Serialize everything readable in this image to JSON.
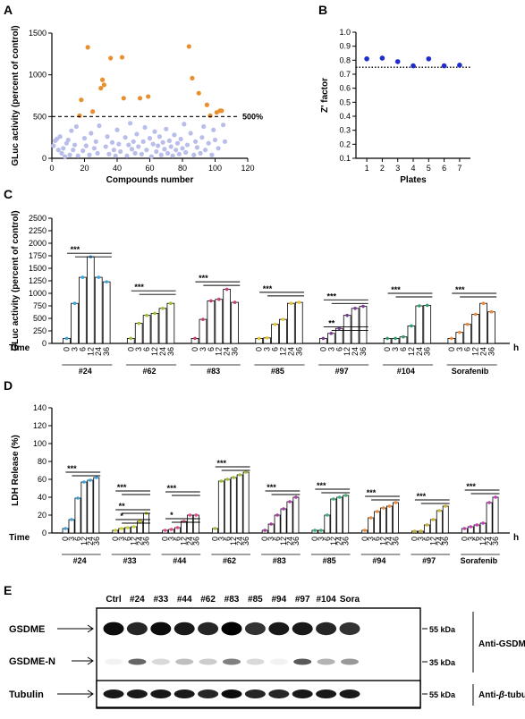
{
  "panels": {
    "A": "A",
    "B": "B",
    "C": "C",
    "D": "D",
    "E": "E"
  },
  "chart_data": [
    {
      "id": "A",
      "type": "scatter",
      "xlabel": "Compounds number",
      "ylabel": "GLuc activity (percent of control)",
      "xlim": [
        0,
        120
      ],
      "ylim": [
        0,
        1500
      ],
      "xticks": [
        0,
        20,
        40,
        60,
        80,
        100,
        120
      ],
      "yticks": [
        0,
        500,
        1000,
        1500
      ],
      "threshold": {
        "value": 500,
        "label": "500%"
      },
      "colors": {
        "hit": "#E8902E",
        "nonhit": "#B9BDEA"
      },
      "hits": [
        [
          17,
          510
        ],
        [
          18,
          700
        ],
        [
          22,
          1330
        ],
        [
          25,
          560
        ],
        [
          30,
          840
        ],
        [
          31,
          940
        ],
        [
          32,
          880
        ],
        [
          36,
          1200
        ],
        [
          43,
          1210
        ],
        [
          44,
          720
        ],
        [
          54,
          720
        ],
        [
          59,
          740
        ],
        [
          84,
          1340
        ],
        [
          86,
          960
        ],
        [
          90,
          780
        ],
        [
          95,
          640
        ],
        [
          97,
          510
        ],
        [
          101,
          550
        ],
        [
          103,
          570
        ],
        [
          104,
          570
        ]
      ],
      "nonhits": [
        [
          1,
          150
        ],
        [
          2,
          210
        ],
        [
          3,
          230
        ],
        [
          4,
          100
        ],
        [
          5,
          260
        ],
        [
          6,
          60
        ],
        [
          7,
          120
        ],
        [
          8,
          20
        ],
        [
          9,
          180
        ],
        [
          10,
          220
        ],
        [
          11,
          40
        ],
        [
          12,
          330
        ],
        [
          13,
          100
        ],
        [
          14,
          160
        ],
        [
          15,
          380
        ],
        [
          16,
          30
        ],
        [
          19,
          90
        ],
        [
          20,
          240
        ],
        [
          21,
          150
        ],
        [
          23,
          40
        ],
        [
          24,
          300
        ],
        [
          26,
          120
        ],
        [
          27,
          200
        ],
        [
          28,
          60
        ],
        [
          29,
          390
        ],
        [
          33,
          140
        ],
        [
          34,
          260
        ],
        [
          35,
          50
        ],
        [
          37,
          190
        ],
        [
          38,
          100
        ],
        [
          39,
          30
        ],
        [
          40,
          340
        ],
        [
          41,
          170
        ],
        [
          42,
          80
        ],
        [
          45,
          250
        ],
        [
          46,
          30
        ],
        [
          47,
          160
        ],
        [
          48,
          420
        ],
        [
          49,
          110
        ],
        [
          50,
          200
        ],
        [
          51,
          60
        ],
        [
          52,
          290
        ],
        [
          53,
          140
        ],
        [
          55,
          50
        ],
        [
          56,
          200
        ],
        [
          57,
          370
        ],
        [
          58,
          100
        ],
        [
          60,
          240
        ],
        [
          61,
          20
        ],
        [
          62,
          170
        ],
        [
          63,
          320
        ],
        [
          64,
          80
        ],
        [
          65,
          150
        ],
        [
          66,
          260
        ],
        [
          67,
          40
        ],
        [
          68,
          190
        ],
        [
          69,
          110
        ],
        [
          70,
          350
        ],
        [
          71,
          60
        ],
        [
          72,
          210
        ],
        [
          73,
          140
        ],
        [
          74,
          30
        ],
        [
          75,
          280
        ],
        [
          76,
          100
        ],
        [
          77,
          180
        ],
        [
          78,
          50
        ],
        [
          79,
          230
        ],
        [
          80,
          120
        ],
        [
          81,
          410
        ],
        [
          82,
          70
        ],
        [
          83,
          160
        ],
        [
          85,
          300
        ],
        [
          87,
          40
        ],
        [
          88,
          200
        ],
        [
          89,
          130
        ],
        [
          91,
          60
        ],
        [
          92,
          250
        ],
        [
          93,
          380
        ],
        [
          94,
          100
        ],
        [
          96,
          180
        ],
        [
          98,
          40
        ],
        [
          99,
          340
        ],
        [
          100,
          220
        ],
        [
          102,
          120
        ],
        [
          105,
          400
        ],
        [
          106,
          200
        ]
      ]
    },
    {
      "id": "B",
      "type": "scatter",
      "xlabel": "Plates",
      "ylabel": "Z' factor",
      "xlim": [
        0.3,
        7.7
      ],
      "ylim": [
        0.1,
        1.0
      ],
      "xticks": [
        1,
        2,
        3,
        4,
        5,
        6,
        7
      ],
      "yticks": [
        0.1,
        0.2,
        0.3,
        0.4,
        0.5,
        0.6,
        0.7,
        0.8,
        0.9,
        1.0
      ],
      "threshold": {
        "value": 0.75
      },
      "color": "#1F2DCC",
      "x": [
        1,
        2,
        3,
        4,
        5,
        6,
        7
      ],
      "y": [
        0.81,
        0.815,
        0.79,
        0.76,
        0.81,
        0.76,
        0.765
      ]
    },
    {
      "id": "C",
      "type": "bar",
      "ylabel": "GLuc activity (percent of control)",
      "ylim": [
        0,
        2500
      ],
      "yticks": [
        0,
        250,
        500,
        750,
        1000,
        1250,
        1500,
        1750,
        2000,
        2250,
        2500
      ],
      "time_label": "Time",
      "unit": "h",
      "categories": [
        "0",
        "3",
        "6",
        "12",
        "24",
        "36"
      ],
      "significance": [
        "***",
        "**"
      ],
      "groups": [
        {
          "name": "#24",
          "color": "#3AA4DC",
          "values": [
            100,
            800,
            1320,
            1730,
            1320,
            1230
          ],
          "bracket": "***",
          "bracket_level": 1800
        },
        {
          "name": "#62",
          "color": "#9CBF33",
          "values": [
            100,
            400,
            560,
            600,
            700,
            800
          ],
          "bracket": "***",
          "bracket_level": 1050
        },
        {
          "name": "#83",
          "color": "#C63D77",
          "values": [
            100,
            480,
            850,
            880,
            1080,
            820
          ],
          "bracket": "***",
          "bracket_level": 1230
        },
        {
          "name": "#85",
          "color": "#E6C430",
          "values": [
            100,
            110,
            380,
            480,
            800,
            820
          ],
          "bracket": "***",
          "bracket_level": 1020
        },
        {
          "name": "#97",
          "color": "#7E3B96",
          "values": [
            100,
            200,
            300,
            560,
            700,
            740
          ],
          "bracket": "***",
          "bracket_level": 870,
          "bracket2": "**",
          "bracket2_level": 330
        },
        {
          "name": "#104",
          "color": "#2F9E6B",
          "values": [
            100,
            100,
            130,
            350,
            750,
            760
          ],
          "bracket": "***",
          "bracket_level": 1000
        },
        {
          "name": "Sorafenib",
          "color": "#E98A3C",
          "values": [
            100,
            220,
            380,
            580,
            800,
            630
          ],
          "bracket": "***",
          "bracket_level": 1000
        }
      ]
    },
    {
      "id": "D",
      "type": "bar",
      "ylabel": "LDH Release (%)",
      "ylim": [
        0,
        140
      ],
      "yticks": [
        0,
        20,
        40,
        60,
        80,
        100,
        120,
        140
      ],
      "time_label": "Time",
      "unit": "h",
      "categories": [
        "0",
        "3",
        "6",
        "12",
        "24",
        "36"
      ],
      "significance": [
        "***",
        "**",
        "*"
      ],
      "groups": [
        {
          "name": "#24",
          "color": "#3AA4DC",
          "values": [
            5,
            15,
            39,
            57,
            59,
            62
          ],
          "bracket": "***",
          "bracket_level": 68
        },
        {
          "name": "#33",
          "color": "#C9D22B",
          "values": [
            3,
            5,
            6,
            7,
            13,
            22
          ],
          "bracket": "***",
          "bracket_level": 47,
          "bracket2": "**",
          "bracket2_level": 26,
          "bracket3": "*",
          "bracket3_level": 15
        },
        {
          "name": "#44",
          "color": "#E34A8A",
          "values": [
            3,
            4,
            6,
            13,
            20,
            20
          ],
          "bracket": "***",
          "bracket_level": 46,
          "bracket2": "*",
          "bracket2_level": 16
        },
        {
          "name": "#62",
          "color": "#9CBF33",
          "values": [
            5,
            58,
            60,
            62,
            65,
            68
          ],
          "bracket": "***",
          "bracket_level": 74
        },
        {
          "name": "#83",
          "color": "#A43BA0",
          "values": [
            3,
            10,
            20,
            27,
            35,
            40
          ],
          "bracket": "***",
          "bracket_level": 47
        },
        {
          "name": "#85",
          "color": "#3DB07A",
          "values": [
            3,
            3,
            20,
            38,
            40,
            42
          ],
          "bracket": "***",
          "bracket_level": 49
        },
        {
          "name": "#94",
          "color": "#E98A3C",
          "values": [
            3,
            17,
            24,
            28,
            30,
            34
          ],
          "bracket": "***",
          "bracket_level": 41
        },
        {
          "name": "#97",
          "color": "#C8B236",
          "values": [
            2,
            2,
            9,
            15,
            25,
            30
          ],
          "bracket": "***",
          "bracket_level": 37
        },
        {
          "name": "Sorafenib",
          "color": "#C13FB6",
          "values": [
            5,
            7,
            9,
            11,
            34,
            40
          ],
          "bracket": "***",
          "bracket_level": 48
        }
      ]
    }
  ],
  "blot": {
    "lanes": [
      "Ctrl",
      "#24",
      "#33",
      "#44",
      "#62",
      "#83",
      "#85",
      "#94",
      "#97",
      "#104",
      "Sora"
    ],
    "rows": {
      "gsdme": "GSDME",
      "gsdme_n": "GSDME-N",
      "tubulin": "Tubulin"
    },
    "markers": {
      "m55": "55 kDa",
      "m35": "35 kDa",
      "m55b": "55 kDa"
    },
    "antibodies": {
      "gsdme": "Anti-GSDME",
      "tubulin_prefix": "Anti-",
      "tubulin_greek": "β",
      "tubulin_suffix": "-tubulin"
    },
    "intensity": {
      "gsdme": [
        0.95,
        0.85,
        0.95,
        0.9,
        0.85,
        1.0,
        0.8,
        0.9,
        0.9,
        0.85,
        0.8
      ],
      "gsdme_n": [
        0.05,
        0.6,
        0.15,
        0.25,
        0.2,
        0.5,
        0.15,
        0.05,
        0.65,
        0.3,
        0.4
      ],
      "tubulin": [
        0.9,
        0.9,
        0.9,
        0.9,
        0.85,
        0.95,
        0.85,
        0.85,
        0.9,
        0.9,
        0.9
      ]
    }
  }
}
